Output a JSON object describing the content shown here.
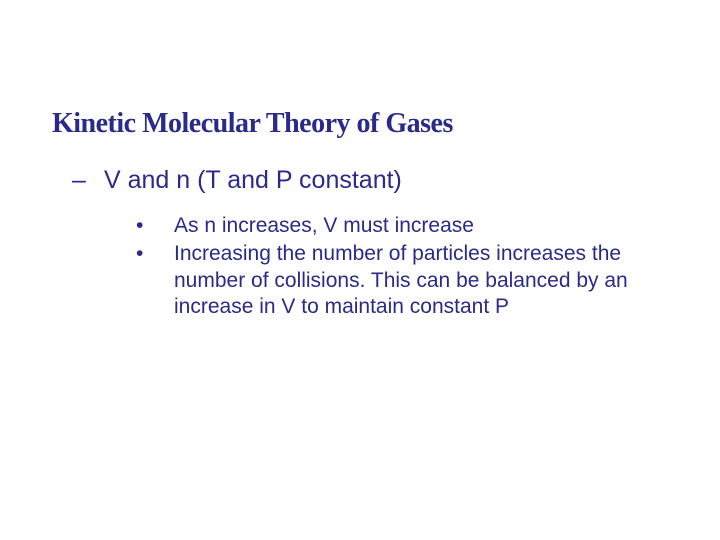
{
  "colors": {
    "title": "#2a2a8a",
    "text": "#2a2a8a",
    "background": "#ffffff"
  },
  "title": "Kinetic Molecular Theory of Gases",
  "level1": {
    "marker": "–",
    "text": "V and n (T and P constant)"
  },
  "bullets": [
    {
      "marker": "•",
      "text": "As n increases, V must increase"
    },
    {
      "marker": "•",
      "text": "Increasing the number of particles increases the number of collisions.  This can be balanced by an increase in V to maintain constant P"
    }
  ],
  "typography": {
    "title_fontsize": 28,
    "title_weight": 900,
    "level1_fontsize": 25,
    "bullet_fontsize": 21,
    "font_family": "Arial"
  }
}
